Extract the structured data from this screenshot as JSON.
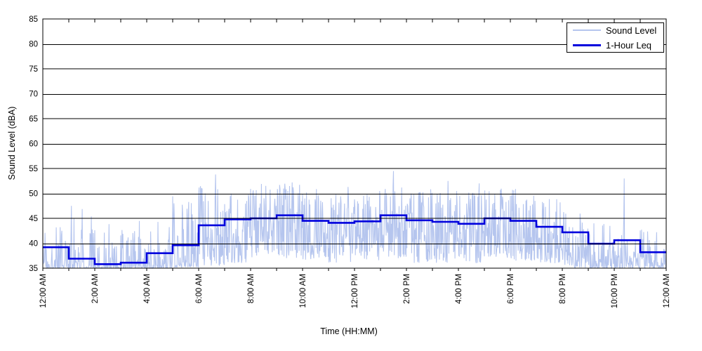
{
  "window": {
    "background": "#ffffff",
    "text_color": "#000000"
  },
  "chart_data": {
    "type": "line",
    "title": "",
    "xlabel": "Time (HH:MM)",
    "ylabel": "Sound Level (dBA)",
    "grid": {
      "horizontal": true,
      "color": "#000000",
      "frame": true
    },
    "x_axis": {
      "span_hours": 24,
      "minor_tick_every_hours": 1,
      "label_every_hours": 2,
      "tick_labels": [
        "12:00 AM",
        "2:00 AM",
        "4:00 AM",
        "6:00 AM",
        "8:00 AM",
        "10:00 AM",
        "12:00 PM",
        "2:00 PM",
        "4:00 PM",
        "6:00 PM",
        "8:00 PM",
        "10:00 PM",
        "12:00 AM"
      ]
    },
    "y_axis": {
      "min": 35,
      "max": 85,
      "tick_step": 5,
      "tick_labels": [
        "35",
        "40",
        "45",
        "50",
        "55",
        "60",
        "65",
        "70",
        "75",
        "80",
        "85"
      ]
    },
    "legend": {
      "position": "top-right",
      "entries": [
        {
          "label": "Sound Level",
          "color": "#b5c5ee",
          "line_width": 2
        },
        {
          "label": "1-Hour Leq",
          "color": "#0000dd",
          "line_width": 3
        }
      ]
    },
    "series": [
      {
        "name": "Sound Level",
        "style": "noisy-line",
        "color": "#b5c5ee",
        "samples_per_hour": 60,
        "seed": 987654,
        "hourly_envelope": [
          {
            "lo": 35.0,
            "hi": 46.0,
            "skew": 5.0
          },
          {
            "lo": 35.0,
            "hi": 48.0,
            "skew": 5.0
          },
          {
            "lo": 35.0,
            "hi": 44.0,
            "skew": 5.5
          },
          {
            "lo": 35.0,
            "hi": 45.0,
            "skew": 5.0
          },
          {
            "lo": 35.0,
            "hi": 46.0,
            "skew": 4.0
          },
          {
            "lo": 35.2,
            "hi": 49.5,
            "skew": 3.0
          },
          {
            "lo": 35.5,
            "hi": 51.5,
            "skew": 1.8
          },
          {
            "lo": 36.0,
            "hi": 51.0,
            "skew": 1.5
          },
          {
            "lo": 37.0,
            "hi": 52.0,
            "skew": 1.4
          },
          {
            "lo": 37.0,
            "hi": 52.0,
            "skew": 1.4
          },
          {
            "lo": 36.5,
            "hi": 51.0,
            "skew": 1.4
          },
          {
            "lo": 36.0,
            "hi": 50.0,
            "skew": 1.5
          },
          {
            "lo": 36.5,
            "hi": 51.0,
            "skew": 1.4
          },
          {
            "lo": 37.0,
            "hi": 52.0,
            "skew": 1.4
          },
          {
            "lo": 36.0,
            "hi": 51.0,
            "skew": 1.4
          },
          {
            "lo": 36.0,
            "hi": 50.5,
            "skew": 1.4
          },
          {
            "lo": 36.0,
            "hi": 50.5,
            "skew": 1.5
          },
          {
            "lo": 37.0,
            "hi": 51.0,
            "skew": 1.35
          },
          {
            "lo": 36.5,
            "hi": 51.0,
            "skew": 1.4
          },
          {
            "lo": 36.0,
            "hi": 49.0,
            "skew": 1.5
          },
          {
            "lo": 35.0,
            "hi": 48.0,
            "skew": 1.9
          },
          {
            "lo": 35.0,
            "hi": 45.0,
            "skew": 3.0
          },
          {
            "lo": 35.0,
            "hi": 44.0,
            "skew": 3.0
          },
          {
            "lo": 35.0,
            "hi": 43.0,
            "skew": 2.8
          }
        ],
        "spikes": [
          {
            "hour": 1.1,
            "dba": 47.5
          },
          {
            "hour": 5.05,
            "dba": 48.0
          },
          {
            "hour": 6.65,
            "dba": 53.8
          },
          {
            "hour": 9.6,
            "dba": 52.2
          },
          {
            "hour": 11.75,
            "dba": 51.3
          },
          {
            "hour": 13.5,
            "dba": 54.5
          },
          {
            "hour": 15.6,
            "dba": 52.5
          },
          {
            "hour": 16.8,
            "dba": 52.0
          },
          {
            "hour": 22.38,
            "dba": 53.0
          }
        ]
      },
      {
        "name": "1-Hour Leq",
        "style": "step-line",
        "color": "#0000dd",
        "hourly_leq_dba": [
          39.2,
          36.9,
          35.8,
          36.1,
          38.0,
          39.6,
          43.6,
          44.8,
          45.0,
          45.6,
          44.5,
          44.1,
          44.4,
          45.6,
          44.6,
          44.3,
          43.9,
          45.0,
          44.5,
          43.3,
          42.2,
          39.9,
          40.6,
          38.2
        ]
      }
    ]
  }
}
